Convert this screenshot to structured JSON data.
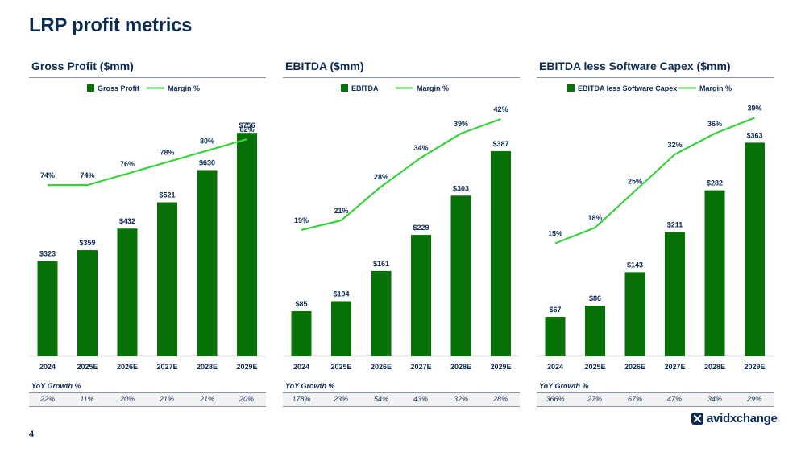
{
  "page": {
    "title": "LRP profit metrics",
    "page_number": "4",
    "brand": "avidxchange"
  },
  "colors": {
    "bar": "#077108",
    "line": "#39d13c",
    "text": "#0b2b55",
    "rule": "#8a97a8"
  },
  "icons": {
    "brand_mark": "x-logo-icon"
  },
  "panels": [
    {
      "title": "Gross Profit ($mm)",
      "yoy_label": "YoY Growth %",
      "yoy": [
        "22%",
        "11%",
        "20%",
        "21%",
        "21%",
        "20%"
      ]
    },
    {
      "title": "EBITDA ($mm)",
      "yoy_label": "YoY Growth %",
      "yoy": [
        "178%",
        "23%",
        "54%",
        "43%",
        "32%",
        "28%"
      ]
    },
    {
      "title": "EBITDA less Software Capex ($mm)",
      "yoy_label": "YoY Growth %",
      "yoy": [
        "366%",
        "27%",
        "67%",
        "47%",
        "34%",
        "29%"
      ]
    }
  ],
  "chart_data": [
    {
      "type": "bar",
      "categories": [
        "2024",
        "2025E",
        "2026E",
        "2027E",
        "2028E",
        "2029E"
      ],
      "series": [
        {
          "name": "Gross Profit",
          "type": "bar",
          "values": [
            323,
            359,
            432,
            521,
            630,
            756
          ],
          "labels": [
            "$323",
            "$359",
            "$432",
            "$521",
            "$630",
            "$756"
          ]
        },
        {
          "name": "Margin %",
          "type": "line",
          "values": [
            74,
            74,
            76,
            78,
            80,
            82
          ],
          "labels": [
            "74%",
            "74%",
            "76%",
            "78%",
            "80%",
            "82%"
          ]
        }
      ],
      "legend": "top-center",
      "grid": false
    },
    {
      "type": "bar",
      "categories": [
        "2024",
        "2025E",
        "2026E",
        "2027E",
        "2028E",
        "2029E"
      ],
      "series": [
        {
          "name": "EBITDA",
          "type": "bar",
          "values": [
            85,
            104,
            161,
            229,
            303,
            387
          ],
          "labels": [
            "$85",
            "$104",
            "$161",
            "$229",
            "$303",
            "$387"
          ]
        },
        {
          "name": "Margin %",
          "type": "line",
          "values": [
            19,
            21,
            28,
            34,
            39,
            42
          ],
          "labels": [
            "19%",
            "21%",
            "28%",
            "34%",
            "39%",
            "42%"
          ]
        }
      ],
      "legend": "top-center",
      "grid": false
    },
    {
      "type": "bar",
      "categories": [
        "2024",
        "2025E",
        "2026E",
        "2027E",
        "2028E",
        "2029E"
      ],
      "series": [
        {
          "name": "EBITDA less Software Capex",
          "type": "bar",
          "values": [
            67,
            86,
            143,
            211,
            282,
            363
          ],
          "labels": [
            "$67",
            "$86",
            "$143",
            "$211",
            "$282",
            "$363"
          ]
        },
        {
          "name": "Margin %",
          "type": "line",
          "values": [
            15,
            18,
            25,
            32,
            36,
            39
          ],
          "labels": [
            "15%",
            "18%",
            "25%",
            "32%",
            "36%",
            "39%"
          ]
        }
      ],
      "legend": "top-center",
      "grid": false
    }
  ]
}
